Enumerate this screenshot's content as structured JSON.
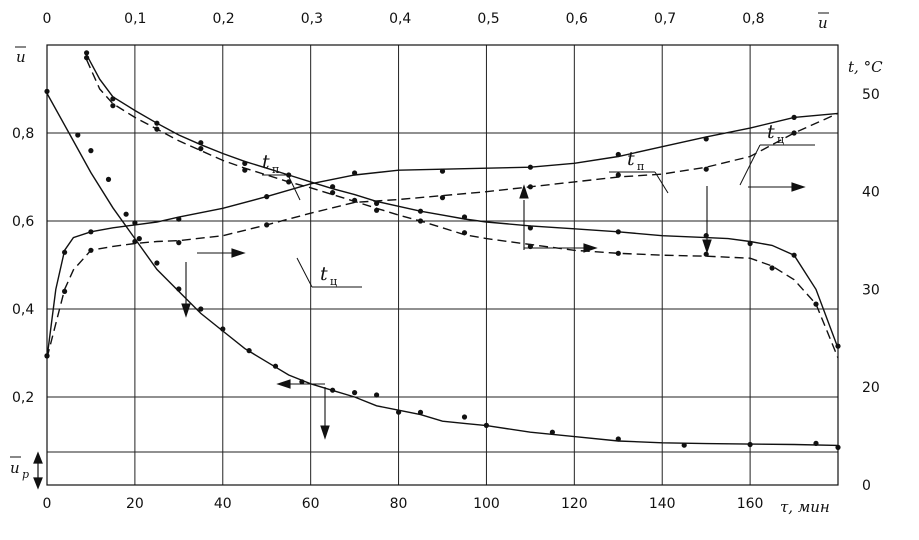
{
  "chart_data": {
    "type": "line",
    "x_bottom": {
      "label": "τ, мин",
      "ticks": [
        "0",
        "20",
        "40",
        "60",
        "80",
        "100",
        "120",
        "140",
        "160"
      ],
      "range": [
        0,
        180
      ]
    },
    "x_top": {
      "label": "u",
      "ticks": [
        "0",
        "0,1",
        "0,2",
        "0,3",
        "0,4",
        "0,5",
        "0,6",
        "0,7",
        "0,8"
      ]
    },
    "y_left": {
      "label": "u",
      "ticks": [
        "0,2",
        "0,4",
        "0,6",
        "0,8"
      ],
      "range": [
        0,
        1.0
      ]
    },
    "y_left_extra": "u",
    "y_left_extra_sub": "p",
    "y_right": {
      "label": "t, °C",
      "ticks": [
        "0",
        "20",
        "30",
        "40",
        "50"
      ],
      "range": [
        10,
        55
      ]
    },
    "grid": true,
    "series": [
      {
        "axis": "left",
        "style": "solid",
        "x": [
          0,
          5,
          10,
          15,
          20,
          25,
          30,
          35,
          40,
          45,
          50,
          55,
          60,
          65,
          70,
          75,
          80,
          85,
          90,
          95,
          100,
          110,
          120,
          130,
          140,
          150,
          160,
          170,
          180
        ],
        "y": [
          0.89,
          0.8,
          0.71,
          0.63,
          0.56,
          0.49,
          0.44,
          0.39,
          0.35,
          0.31,
          0.28,
          0.25,
          0.23,
          0.215,
          0.2,
          0.18,
          0.17,
          0.16,
          0.145,
          0.14,
          0.135,
          0.12,
          0.11,
          0.1,
          0.096,
          0.094,
          0.093,
          0.092,
          0.09
        ],
        "points_x": [
          0,
          7,
          10,
          14,
          18,
          21,
          25,
          30,
          35,
          40,
          46,
          52,
          58,
          65,
          70,
          75,
          80,
          85,
          95,
          100,
          115,
          130,
          145,
          160,
          175,
          180
        ],
        "points_y": [
          0.89,
          0.8,
          0.76,
          0.69,
          0.62,
          0.56,
          0.5,
          0.45,
          0.4,
          0.35,
          0.31,
          0.27,
          0.23,
          0.22,
          0.21,
          0.2,
          0.17,
          0.165,
          0.15,
          0.14,
          0.12,
          0.1,
          0.095,
          0.092,
          0.09,
          0.09
        ]
      },
      {
        "axis": "right",
        "style": "solid",
        "label": "tп",
        "x": [
          9,
          12,
          15,
          20,
          25,
          30,
          35,
          40,
          45,
          50,
          55,
          60,
          65,
          70,
          75,
          80,
          85,
          90,
          95,
          100,
          110,
          120,
          130,
          140,
          150,
          155,
          160,
          165,
          170,
          175,
          180
        ],
        "y": [
          54,
          51.5,
          49.7,
          48.3,
          47.0,
          45.8,
          44.8,
          43.9,
          43.1,
          42.4,
          41.7,
          41.0,
          40.3,
          39.7,
          39.0,
          38.5,
          38.0,
          37.6,
          37.2,
          36.9,
          36.5,
          36.2,
          35.9,
          35.5,
          35.3,
          35.2,
          34.9,
          34.5,
          33.5,
          30.0,
          24
        ]
      },
      {
        "axis": "right",
        "style": "dashed",
        "label": "",
        "x": [
          9,
          12,
          15,
          20,
          25,
          30,
          35,
          40,
          45,
          50,
          55,
          60,
          65,
          70,
          75,
          80,
          85,
          90,
          95,
          100,
          110,
          120,
          130,
          140,
          150,
          160,
          165,
          170,
          175,
          180
        ],
        "y": [
          53.5,
          50.5,
          49.0,
          47.6,
          46.4,
          45.2,
          44.2,
          43.2,
          42.4,
          41.7,
          41.0,
          40.4,
          39.7,
          39.0,
          38.3,
          37.6,
          37.0,
          36.3,
          35.6,
          35.2,
          34.6,
          34.0,
          33.7,
          33.5,
          33.4,
          33.2,
          32.4,
          31.0,
          28.5,
          23
        ]
      },
      {
        "axis": "right",
        "style": "solid",
        "label": "tп",
        "x": [
          0,
          2,
          4,
          6,
          10,
          15,
          20,
          25,
          30,
          40,
          50,
          60,
          70,
          80,
          90,
          100,
          110,
          120,
          130,
          140,
          150,
          160,
          170,
          180
        ],
        "y": [
          23,
          30,
          34,
          35.3,
          35.9,
          36.3,
          36.6,
          36.9,
          37.4,
          38.3,
          39.5,
          40.8,
          41.7,
          42.2,
          42.3,
          42.4,
          42.5,
          42.9,
          43.6,
          44.6,
          45.6,
          46.5,
          47.6,
          48.0
        ]
      },
      {
        "axis": "right",
        "style": "dashed",
        "label": "tц",
        "x": [
          0,
          2,
          4,
          6,
          10,
          15,
          20,
          25,
          30,
          40,
          50,
          60,
          70,
          80,
          90,
          100,
          110,
          120,
          130,
          140,
          150,
          160,
          170,
          180
        ],
        "y": [
          23,
          26.5,
          30,
          32,
          34,
          34.4,
          34.7,
          34.9,
          35.0,
          35.5,
          36.6,
          37.8,
          38.9,
          39.2,
          39.6,
          40.0,
          40.5,
          41.0,
          41.5,
          41.8,
          42.5,
          43.6,
          46.0,
          48.0
        ]
      }
    ],
    "labels": [
      {
        "text": "tп",
        "sub": "п"
      },
      {
        "text": "tц",
        "sub": "ц"
      },
      {
        "text": "tп",
        "sub": "п"
      },
      {
        "text": "tц",
        "sub": "ц"
      }
    ]
  }
}
